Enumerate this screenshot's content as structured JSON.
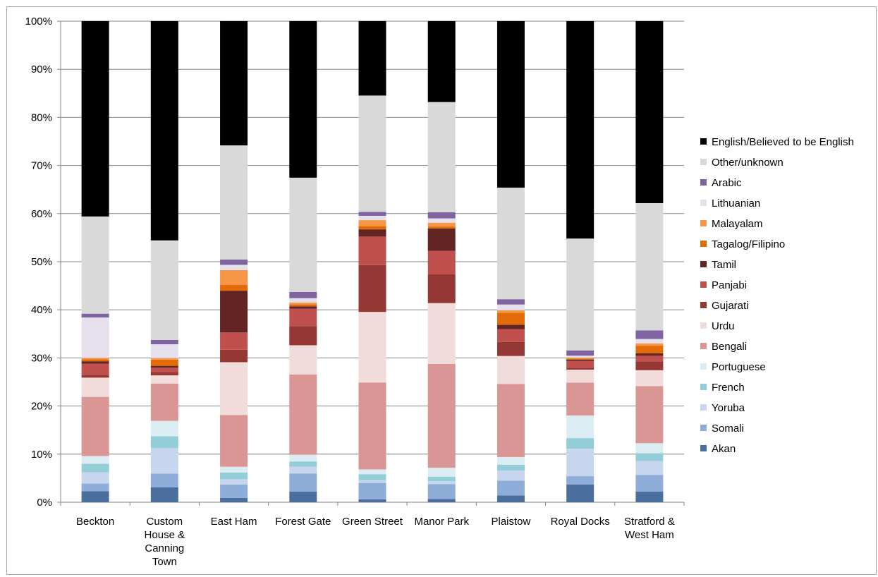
{
  "chart_data": {
    "type": "bar",
    "stacked": true,
    "percent_stacked": true,
    "title": "",
    "xlabel": "",
    "ylabel": "",
    "ylim": [
      0,
      100
    ],
    "y_ticks": [
      "0%",
      "10%",
      "20%",
      "30%",
      "40%",
      "50%",
      "60%",
      "70%",
      "80%",
      "90%",
      "100%"
    ],
    "grid": true,
    "legend_position": "right",
    "categories": [
      [
        "Beckton"
      ],
      [
        "Custom",
        "House &",
        "Canning",
        "Town"
      ],
      [
        "East Ham"
      ],
      [
        "Forest Gate"
      ],
      [
        "Green Street"
      ],
      [
        "Manor Park"
      ],
      [
        "Plaistow"
      ],
      [
        "Royal Docks"
      ],
      [
        "Stratford &",
        "West Ham"
      ]
    ],
    "series": [
      {
        "name": "Akan",
        "color": "#4a6f9f",
        "values": [
          2.3,
          3.1,
          0.9,
          2.2,
          0.6,
          0.7,
          1.4,
          3.7,
          2.2
        ]
      },
      {
        "name": "Somali",
        "color": "#8fadd9",
        "values": [
          1.6,
          2.9,
          2.8,
          3.8,
          3.4,
          3.1,
          3.1,
          1.7,
          3.5
        ]
      },
      {
        "name": "Yoruba",
        "color": "#c7d6ee",
        "values": [
          2.3,
          5.3,
          1.1,
          1.4,
          0.6,
          0.6,
          2.1,
          5.7,
          2.9
        ]
      },
      {
        "name": "French",
        "color": "#93cdd8",
        "values": [
          1.8,
          2.5,
          1.4,
          1.1,
          1.2,
          0.9,
          1.2,
          2.2,
          1.6
        ]
      },
      {
        "name": "Portuguese",
        "color": "#dbedf3",
        "values": [
          1.6,
          3.2,
          1.2,
          1.4,
          1.0,
          1.9,
          1.6,
          4.7,
          2.1
        ]
      },
      {
        "name": "Bengali",
        "color": "#d99694",
        "values": [
          12.3,
          7.8,
          10.8,
          16.7,
          18.0,
          21.7,
          15.2,
          6.8,
          11.9
        ]
      },
      {
        "name": "Urdu",
        "color": "#f2dcdb",
        "values": [
          4.0,
          1.7,
          11.0,
          6.1,
          14.6,
          12.7,
          5.8,
          2.7,
          3.3
        ]
      },
      {
        "name": "Gujarati",
        "color": "#953735",
        "values": [
          0.6,
          0.7,
          2.6,
          4.0,
          9.7,
          6.0,
          2.9,
          0.4,
          1.8
        ]
      },
      {
        "name": "Panjabi",
        "color": "#c0504d",
        "values": [
          2.3,
          0.9,
          3.6,
          3.6,
          5.9,
          4.9,
          2.7,
          1.4,
          1.2
        ]
      },
      {
        "name": "Tamil",
        "color": "#632523",
        "values": [
          0.5,
          0.4,
          8.7,
          0.5,
          1.5,
          4.7,
          0.9,
          0.3,
          0.5
        ]
      },
      {
        "name": "Tagalog/Filipino",
        "color": "#e36c09",
        "values": [
          0.4,
          1.3,
          1.2,
          0.4,
          0.7,
          0.4,
          2.5,
          0.2,
          1.6
        ]
      },
      {
        "name": "Malayalam",
        "color": "#f79646",
        "values": [
          0.3,
          0.3,
          3.1,
          0.4,
          1.2,
          0.8,
          0.5,
          0.2,
          0.5
        ]
      },
      {
        "name": "Lithuanian",
        "color": "#e6e0ec",
        "values": [
          8.4,
          2.9,
          1.1,
          0.9,
          0.9,
          0.9,
          1.2,
          0.4,
          0.9
        ]
      },
      {
        "name": "Arabic",
        "color": "#8064a2",
        "values": [
          0.8,
          0.9,
          1.1,
          1.3,
          0.8,
          1.3,
          1.1,
          1.1,
          1.8
        ]
      },
      {
        "name": "Other/unknown",
        "color": "#d9d9d9",
        "values": [
          20.2,
          20.8,
          23.8,
          23.8,
          24.1,
          23.0,
          23.2,
          23.2,
          26.5
        ]
      },
      {
        "name": "English/Believed to be English",
        "color": "#000000",
        "values": [
          40.6,
          45.8,
          25.9,
          32.6,
          15.4,
          16.9,
          34.6,
          45.1,
          37.9
        ]
      }
    ]
  }
}
